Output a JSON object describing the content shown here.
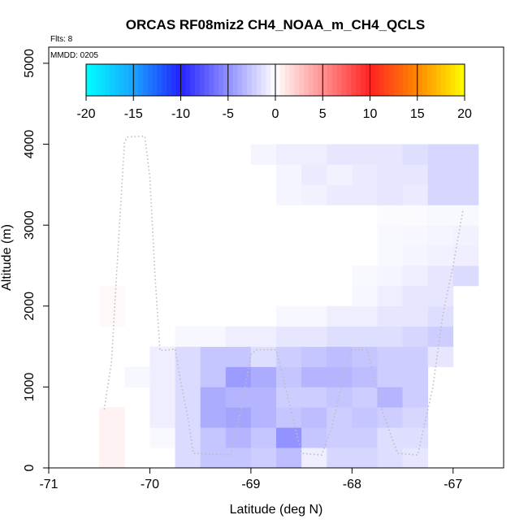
{
  "chart_data": {
    "type": "heatmap",
    "title": "ORCAS RF08miz2 CH4_NOAA_m_CH4_QCLS",
    "flights_label": "Flts: 8",
    "date_label": "MMDD: 0205",
    "xlabel": "Latitude (deg N)",
    "ylabel": "Altitude (m)",
    "xlim": [
      -71,
      -66.5
    ],
    "ylim": [
      0,
      5200
    ],
    "xticks": [
      -71,
      -70,
      -69,
      -68,
      -67
    ],
    "xtick_labels": [
      "-71",
      "-70",
      "-69",
      "-68",
      "-67"
    ],
    "yticks": [
      0,
      1000,
      2000,
      3000,
      4000,
      5000
    ],
    "ytick_labels": [
      "0",
      "1000",
      "2000",
      "3000",
      "4000",
      "5000"
    ],
    "colorbar": {
      "min": -20,
      "max": 20,
      "ticks": [
        -20,
        -15,
        -10,
        -5,
        0,
        5,
        10,
        15,
        20
      ],
      "tick_labels": [
        "-20",
        "-15",
        "-10",
        "-5",
        "0",
        "5",
        "10",
        "15",
        "20"
      ]
    },
    "cell_width_deg": 0.25,
    "cell_height_m": 250,
    "cells": [
      {
        "lon": -70.375,
        "alt": 125,
        "v": 0.8
      },
      {
        "lon": -70.375,
        "alt": 375,
        "v": 0.8
      },
      {
        "lon": -70.375,
        "alt": 625,
        "v": 0.8
      },
      {
        "lon": -70.375,
        "alt": 1875,
        "v": 0.4
      },
      {
        "lon": -70.375,
        "alt": 2125,
        "v": 0.4
      },
      {
        "lon": -70.125,
        "alt": 1125,
        "v": -0.5
      },
      {
        "lon": -69.875,
        "alt": 375,
        "v": -0.4
      },
      {
        "lon": -69.875,
        "alt": 625,
        "v": -1.0
      },
      {
        "lon": -69.875,
        "alt": 875,
        "v": -1.0
      },
      {
        "lon": -69.875,
        "alt": 1125,
        "v": -1.0
      },
      {
        "lon": -69.875,
        "alt": 1375,
        "v": -1.0
      },
      {
        "lon": -69.625,
        "alt": 125,
        "v": -2.2
      },
      {
        "lon": -69.625,
        "alt": 375,
        "v": -2.2
      },
      {
        "lon": -69.625,
        "alt": 625,
        "v": -2.2
      },
      {
        "lon": -69.625,
        "alt": 875,
        "v": -2.2
      },
      {
        "lon": -69.625,
        "alt": 1125,
        "v": -2.2
      },
      {
        "lon": -69.625,
        "alt": 1375,
        "v": -2.2
      },
      {
        "lon": -69.625,
        "alt": 1625,
        "v": -0.5
      },
      {
        "lon": -69.375,
        "alt": 125,
        "v": -3.5
      },
      {
        "lon": -69.375,
        "alt": 375,
        "v": -3.5
      },
      {
        "lon": -69.375,
        "alt": 625,
        "v": -5.0
      },
      {
        "lon": -69.375,
        "alt": 875,
        "v": -5.0
      },
      {
        "lon": -69.375,
        "alt": 1125,
        "v": -3.5
      },
      {
        "lon": -69.375,
        "alt": 1375,
        "v": -3.5
      },
      {
        "lon": -69.375,
        "alt": 1625,
        "v": -0.5
      },
      {
        "lon": -69.125,
        "alt": 125,
        "v": -3.5
      },
      {
        "lon": -69.125,
        "alt": 375,
        "v": -4.5
      },
      {
        "lon": -69.125,
        "alt": 625,
        "v": -5.5
      },
      {
        "lon": -69.125,
        "alt": 875,
        "v": -4.5
      },
      {
        "lon": -69.125,
        "alt": 1125,
        "v": -6.0
      },
      {
        "lon": -69.125,
        "alt": 1375,
        "v": -3.5
      },
      {
        "lon": -69.125,
        "alt": 1625,
        "v": -1.0
      },
      {
        "lon": -68.875,
        "alt": 125,
        "v": -3.0
      },
      {
        "lon": -68.875,
        "alt": 375,
        "v": -3.5
      },
      {
        "lon": -68.875,
        "alt": 625,
        "v": -4.5
      },
      {
        "lon": -68.875,
        "alt": 875,
        "v": -4.5
      },
      {
        "lon": -68.875,
        "alt": 1125,
        "v": -5.0
      },
      {
        "lon": -68.875,
        "alt": 1375,
        "v": -2.0
      },
      {
        "lon": -68.875,
        "alt": 1625,
        "v": -1.0
      },
      {
        "lon": -68.875,
        "alt": 3875,
        "v": -0.6
      },
      {
        "lon": -68.625,
        "alt": 125,
        "v": -4.0
      },
      {
        "lon": -68.625,
        "alt": 375,
        "v": -6.5
      },
      {
        "lon": -68.625,
        "alt": 625,
        "v": -3.5
      },
      {
        "lon": -68.625,
        "alt": 875,
        "v": -3.0
      },
      {
        "lon": -68.625,
        "alt": 1125,
        "v": -3.5
      },
      {
        "lon": -68.625,
        "alt": 1375,
        "v": -3.0
      },
      {
        "lon": -68.625,
        "alt": 1625,
        "v": -1.5
      },
      {
        "lon": -68.625,
        "alt": 1875,
        "v": -0.5
      },
      {
        "lon": -68.625,
        "alt": 3375,
        "v": -0.6
      },
      {
        "lon": -68.625,
        "alt": 3625,
        "v": -0.6
      },
      {
        "lon": -68.625,
        "alt": 3875,
        "v": -1.0
      },
      {
        "lon": -68.375,
        "alt": 125,
        "v": -1.0
      },
      {
        "lon": -68.375,
        "alt": 375,
        "v": -3.5
      },
      {
        "lon": -68.375,
        "alt": 625,
        "v": -4.0
      },
      {
        "lon": -68.375,
        "alt": 875,
        "v": -3.0
      },
      {
        "lon": -68.375,
        "alt": 1125,
        "v": -4.5
      },
      {
        "lon": -68.375,
        "alt": 1375,
        "v": -3.5
      },
      {
        "lon": -68.375,
        "alt": 1625,
        "v": -1.5
      },
      {
        "lon": -68.375,
        "alt": 1875,
        "v": -0.5
      },
      {
        "lon": -68.375,
        "alt": 3375,
        "v": -0.8
      },
      {
        "lon": -68.375,
        "alt": 3625,
        "v": -1.2
      },
      {
        "lon": -68.375,
        "alt": 3875,
        "v": -1.0
      },
      {
        "lon": -68.125,
        "alt": 125,
        "v": -2.5
      },
      {
        "lon": -68.125,
        "alt": 375,
        "v": -3.0
      },
      {
        "lon": -68.125,
        "alt": 625,
        "v": -3.0
      },
      {
        "lon": -68.125,
        "alt": 875,
        "v": -3.5
      },
      {
        "lon": -68.125,
        "alt": 1125,
        "v": -4.5
      },
      {
        "lon": -68.125,
        "alt": 1375,
        "v": -4.0
      },
      {
        "lon": -68.125,
        "alt": 1625,
        "v": -2.0
      },
      {
        "lon": -68.125,
        "alt": 1875,
        "v": -1.0
      },
      {
        "lon": -68.125,
        "alt": 3375,
        "v": -1.2
      },
      {
        "lon": -68.125,
        "alt": 3625,
        "v": -0.8
      },
      {
        "lon": -68.125,
        "alt": 3875,
        "v": -1.5
      },
      {
        "lon": -67.875,
        "alt": 125,
        "v": -2.5
      },
      {
        "lon": -67.875,
        "alt": 375,
        "v": -3.0
      },
      {
        "lon": -67.875,
        "alt": 625,
        "v": -3.5
      },
      {
        "lon": -67.875,
        "alt": 875,
        "v": -3.0
      },
      {
        "lon": -67.875,
        "alt": 1125,
        "v": -4.0
      },
      {
        "lon": -67.875,
        "alt": 1375,
        "v": -3.5
      },
      {
        "lon": -67.875,
        "alt": 1625,
        "v": -2.0
      },
      {
        "lon": -67.875,
        "alt": 1875,
        "v": -1.0
      },
      {
        "lon": -67.875,
        "alt": 2125,
        "v": -0.5
      },
      {
        "lon": -67.875,
        "alt": 2375,
        "v": -0.4
      },
      {
        "lon": -67.875,
        "alt": 3375,
        "v": -1.2
      },
      {
        "lon": -67.875,
        "alt": 3625,
        "v": -1.2
      },
      {
        "lon": -67.875,
        "alt": 3875,
        "v": -1.5
      },
      {
        "lon": -67.625,
        "alt": 125,
        "v": -2.0
      },
      {
        "lon": -67.625,
        "alt": 375,
        "v": -2.0
      },
      {
        "lon": -67.625,
        "alt": 625,
        "v": -3.0
      },
      {
        "lon": -67.625,
        "alt": 875,
        "v": -4.5
      },
      {
        "lon": -67.625,
        "alt": 1125,
        "v": -3.0
      },
      {
        "lon": -67.625,
        "alt": 1375,
        "v": -3.0
      },
      {
        "lon": -67.625,
        "alt": 1625,
        "v": -2.0
      },
      {
        "lon": -67.625,
        "alt": 1875,
        "v": -1.5
      },
      {
        "lon": -67.625,
        "alt": 2125,
        "v": -1.0
      },
      {
        "lon": -67.625,
        "alt": 2375,
        "v": -0.6
      },
      {
        "lon": -67.625,
        "alt": 2625,
        "v": -0.4
      },
      {
        "lon": -67.625,
        "alt": 2875,
        "v": -0.4
      },
      {
        "lon": -67.625,
        "alt": 3125,
        "v": -0.3
      },
      {
        "lon": -67.625,
        "alt": 3375,
        "v": -1.5
      },
      {
        "lon": -67.625,
        "alt": 3625,
        "v": -1.5
      },
      {
        "lon": -67.625,
        "alt": 3875,
        "v": -1.5
      },
      {
        "lon": -67.375,
        "alt": 125,
        "v": -1.5
      },
      {
        "lon": -67.375,
        "alt": 375,
        "v": -2.0
      },
      {
        "lon": -67.375,
        "alt": 625,
        "v": -2.5
      },
      {
        "lon": -67.375,
        "alt": 875,
        "v": -3.0
      },
      {
        "lon": -67.375,
        "alt": 1125,
        "v": -3.0
      },
      {
        "lon": -67.375,
        "alt": 1375,
        "v": -3.0
      },
      {
        "lon": -67.375,
        "alt": 1625,
        "v": -2.5
      },
      {
        "lon": -67.375,
        "alt": 1875,
        "v": -1.5
      },
      {
        "lon": -67.375,
        "alt": 2125,
        "v": -1.5
      },
      {
        "lon": -67.375,
        "alt": 2375,
        "v": -1.0
      },
      {
        "lon": -67.375,
        "alt": 2625,
        "v": -0.6
      },
      {
        "lon": -67.375,
        "alt": 2875,
        "v": -0.5
      },
      {
        "lon": -67.375,
        "alt": 3125,
        "v": -0.3
      },
      {
        "lon": -67.375,
        "alt": 3375,
        "v": -1.2
      },
      {
        "lon": -67.375,
        "alt": 3625,
        "v": -1.5
      },
      {
        "lon": -67.375,
        "alt": 3875,
        "v": -2.0
      },
      {
        "lon": -67.125,
        "alt": 1375,
        "v": -1.5
      },
      {
        "lon": -67.125,
        "alt": 1625,
        "v": -3.0
      },
      {
        "lon": -67.125,
        "alt": 1875,
        "v": -2.0
      },
      {
        "lon": -67.125,
        "alt": 2125,
        "v": -1.5
      },
      {
        "lon": -67.125,
        "alt": 2375,
        "v": -1.5
      },
      {
        "lon": -67.125,
        "alt": 2625,
        "v": -0.8
      },
      {
        "lon": -67.125,
        "alt": 2875,
        "v": -0.6
      },
      {
        "lon": -67.125,
        "alt": 3125,
        "v": -0.4
      },
      {
        "lon": -67.125,
        "alt": 3375,
        "v": -2.5
      },
      {
        "lon": -67.125,
        "alt": 3625,
        "v": -2.5
      },
      {
        "lon": -67.125,
        "alt": 3875,
        "v": -2.5
      },
      {
        "lon": -66.875,
        "alt": 2375,
        "v": -2.2
      },
      {
        "lon": -66.875,
        "alt": 2625,
        "v": -1.0
      },
      {
        "lon": -66.875,
        "alt": 2875,
        "v": -0.8
      },
      {
        "lon": -66.875,
        "alt": 3125,
        "v": -0.4
      },
      {
        "lon": -66.875,
        "alt": 3375,
        "v": -2.5
      },
      {
        "lon": -66.875,
        "alt": 3625,
        "v": -2.5
      },
      {
        "lon": -66.875,
        "alt": 3875,
        "v": -2.5
      }
    ],
    "flight_track": [
      [
        -70.45,
        720
      ],
      [
        -70.42,
        980
      ],
      [
        -70.38,
        1300
      ],
      [
        -70.36,
        1700
      ],
      [
        -70.34,
        2150
      ],
      [
        -70.3,
        3000
      ],
      [
        -70.25,
        4030
      ],
      [
        -70.22,
        4090
      ],
      [
        -70.05,
        4100
      ],
      [
        -70.0,
        3600
      ],
      [
        -69.95,
        2400
      ],
      [
        -69.9,
        1450
      ],
      [
        -69.8,
        1460
      ],
      [
        -69.75,
        1470
      ],
      [
        -69.7,
        1100
      ],
      [
        -69.62,
        600
      ],
      [
        -69.57,
        180
      ],
      [
        -69.2,
        160
      ],
      [
        -69.1,
        700
      ],
      [
        -69.0,
        1400
      ],
      [
        -68.95,
        1460
      ],
      [
        -68.75,
        1460
      ],
      [
        -68.6,
        700
      ],
      [
        -68.5,
        180
      ],
      [
        -68.3,
        160
      ],
      [
        -68.2,
        500
      ],
      [
        -68.05,
        1300
      ],
      [
        -68.0,
        1460
      ],
      [
        -67.85,
        1460
      ],
      [
        -67.7,
        700
      ],
      [
        -67.55,
        180
      ],
      [
        -67.35,
        160
      ],
      [
        -67.2,
        1000
      ],
      [
        -67.1,
        1900
      ],
      [
        -67.0,
        2500
      ],
      [
        -66.9,
        3200
      ]
    ]
  }
}
